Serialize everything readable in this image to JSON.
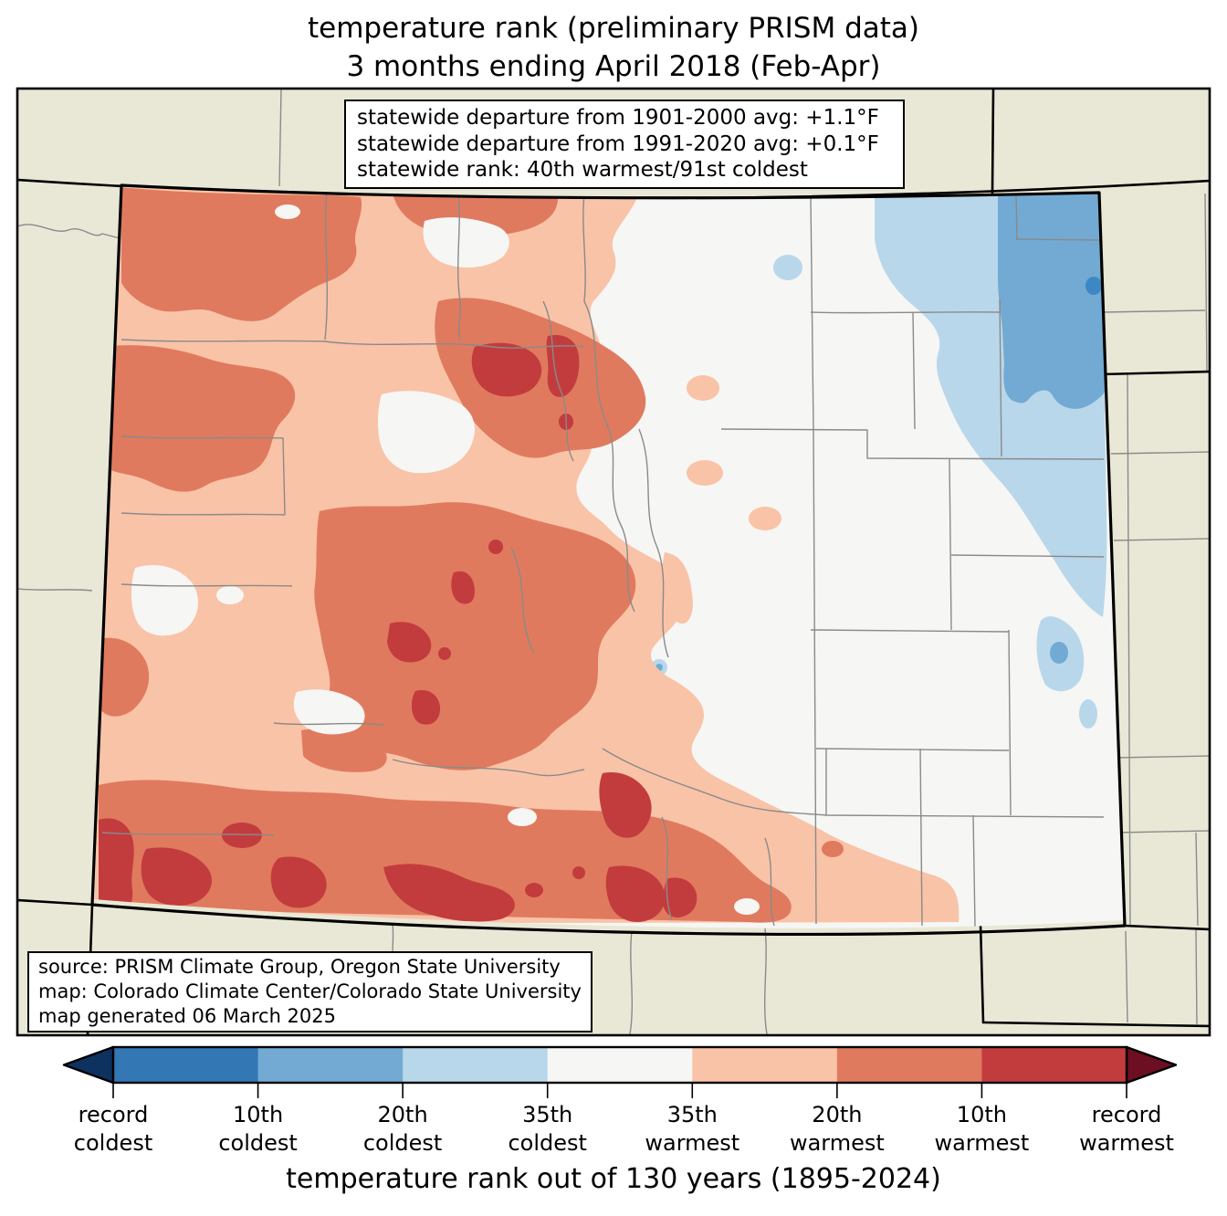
{
  "title": {
    "line1": "temperature rank (preliminary PRISM data)",
    "line2": "3 months ending April 2018 (Feb-Apr)"
  },
  "info_box": {
    "line1": "statewide departure from 1901-2000 avg: +1.1°F",
    "line2": "statewide departure from 1991-2020 avg: +0.1°F",
    "line3": "statewide rank: 40th warmest/91st coldest"
  },
  "source_box": {
    "line1": "source: PRISM Climate Group, Oregon State University",
    "line2": "map: Colorado Climate Center/Colorado State University",
    "line3": "map generated 06 March 2025"
  },
  "colorbar": {
    "caption": "temperature rank out of 130 years (1895-2024)",
    "left_arrow_color": "#0e3260",
    "right_arrow_color": "#6d0f22",
    "segment_colors": [
      "#3377b5",
      "#72aad3",
      "#b9d7ea",
      "#f6f6f5",
      "#f9c3a7",
      "#e07a5e",
      "#c23c3e"
    ],
    "tick_labels": [
      {
        "top": "record",
        "bottom": "coldest"
      },
      {
        "top": "10th",
        "bottom": "coldest"
      },
      {
        "top": "20th",
        "bottom": "coldest"
      },
      {
        "top": "35th",
        "bottom": "coldest"
      },
      {
        "top": "35th",
        "bottom": "warmest"
      },
      {
        "top": "20th",
        "bottom": "warmest"
      },
      {
        "top": "10th",
        "bottom": "warmest"
      },
      {
        "top": "record",
        "bottom": "warmest"
      }
    ]
  },
  "map": {
    "region": "Colorado and surrounding states",
    "palette": {
      "beige": "#e9e8d6",
      "near_normal": "#f6f6f5",
      "warm_20_35": "#f9c3a7",
      "warm_10_20": "#e07a5e",
      "warm_top10": "#c23c3e",
      "cool_20_35": "#b9d7ea",
      "cool_10_20": "#72aad3",
      "cool_top10": "#3c88c4",
      "state_border": "#000000",
      "county_border": "#8a8a8a"
    }
  }
}
